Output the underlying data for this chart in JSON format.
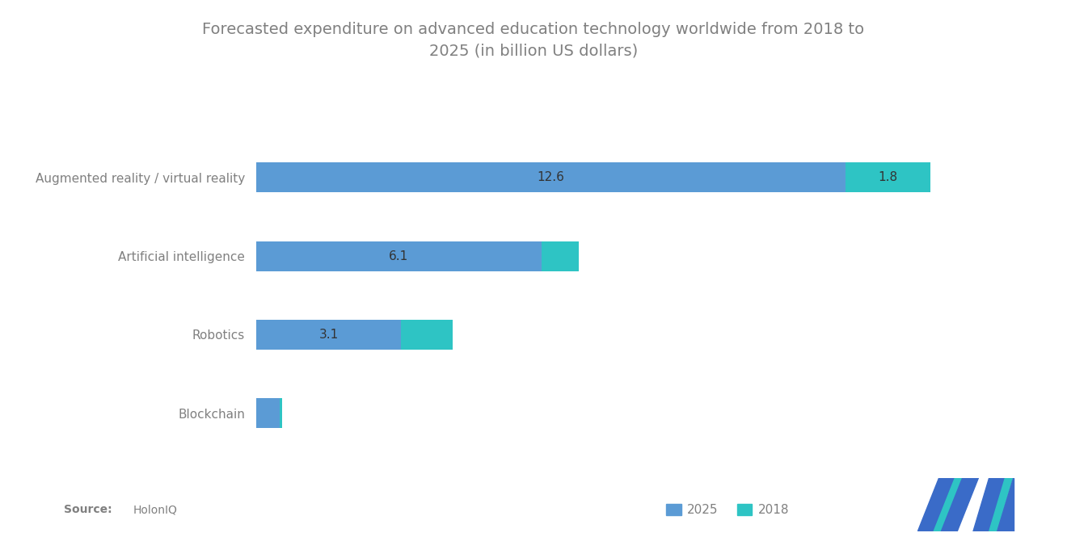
{
  "title": "Forecasted expenditure on advanced education technology worldwide from 2018 to\n2025 (in billion US dollars)",
  "categories": [
    "Augmented reality / virtual reality",
    "Artificial intelligence",
    "Robotics",
    "Blockchain"
  ],
  "values_2025": [
    12.6,
    6.1,
    3.1,
    0.5
  ],
  "values_2018": [
    1.8,
    0.8,
    1.1,
    0.06
  ],
  "labels_2025": [
    "12.6",
    "6.1",
    "3.1",
    ""
  ],
  "labels_2018": [
    "1.8",
    "",
    "",
    ""
  ],
  "color_2025": "#5B9BD5",
  "color_2018": "#2EC4C4",
  "background_color": "#FFFFFF",
  "text_color": "#808080",
  "title_fontsize": 14,
  "label_fontsize": 11,
  "tick_fontsize": 11,
  "source_label": "Source:",
  "source_value": "HolonIQ",
  "legend_labels": [
    "2025",
    "2018"
  ],
  "logo_color1": "#3A6BC8",
  "logo_color2": "#2EC4C4"
}
